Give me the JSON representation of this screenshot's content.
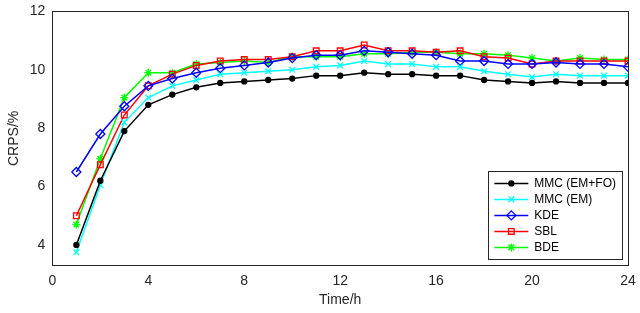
{
  "chart_data": {
    "type": "line",
    "x_label": "Time/h",
    "y_label": "CRPS/%",
    "x": [
      1,
      2,
      3,
      4,
      5,
      6,
      7,
      8,
      9,
      10,
      11,
      12,
      13,
      14,
      15,
      16,
      17,
      18,
      19,
      20,
      21,
      22,
      23,
      24
    ],
    "xlim": [
      0,
      24
    ],
    "xticks": [
      0,
      4,
      8,
      12,
      16,
      20,
      24
    ],
    "ylim": [
      3.3,
      12
    ],
    "yticks": [
      4,
      6,
      8,
      10,
      12
    ],
    "grid": false,
    "legend": "lower right",
    "series": [
      {
        "name": "MMC (EM+FO)",
        "color": "#000000",
        "marker": "circle",
        "values": [
          4.0,
          6.2,
          7.9,
          8.8,
          9.15,
          9.4,
          9.55,
          9.6,
          9.65,
          9.7,
          9.8,
          9.8,
          9.9,
          9.85,
          9.85,
          9.8,
          9.8,
          9.65,
          9.6,
          9.55,
          9.6,
          9.55,
          9.55,
          9.55
        ]
      },
      {
        "name": "MMC (EM)",
        "color": "#00ffff",
        "marker": "x",
        "values": [
          3.75,
          6.05,
          8.2,
          9.05,
          9.45,
          9.65,
          9.85,
          9.9,
          9.95,
          10.0,
          10.1,
          10.15,
          10.3,
          10.2,
          10.2,
          10.1,
          10.1,
          9.95,
          9.85,
          9.75,
          9.85,
          9.8,
          9.8,
          9.8
        ]
      },
      {
        "name": "KDE",
        "color": "#0000ff",
        "marker": "diamond",
        "values": [
          6.5,
          7.8,
          8.75,
          9.45,
          9.7,
          9.9,
          10.05,
          10.15,
          10.25,
          10.4,
          10.5,
          10.5,
          10.65,
          10.6,
          10.55,
          10.5,
          10.3,
          10.3,
          10.2,
          10.2,
          10.25,
          10.2,
          10.2,
          10.1
        ]
      },
      {
        "name": "SBL",
        "color": "#ff0000",
        "marker": "square",
        "values": [
          5.0,
          6.75,
          8.45,
          9.45,
          9.85,
          10.15,
          10.3,
          10.35,
          10.35,
          10.45,
          10.65,
          10.65,
          10.85,
          10.65,
          10.65,
          10.6,
          10.65,
          10.45,
          10.4,
          10.2,
          10.3,
          10.3,
          10.3,
          10.3
        ]
      },
      {
        "name": "BDE",
        "color": "#00ff00",
        "marker": "star",
        "values": [
          4.7,
          6.95,
          9.05,
          9.9,
          9.9,
          10.2,
          10.25,
          10.3,
          10.25,
          10.45,
          10.45,
          10.45,
          10.55,
          10.55,
          10.6,
          10.6,
          10.55,
          10.55,
          10.5,
          10.4,
          10.3,
          10.4,
          10.35,
          10.35
        ]
      }
    ]
  }
}
